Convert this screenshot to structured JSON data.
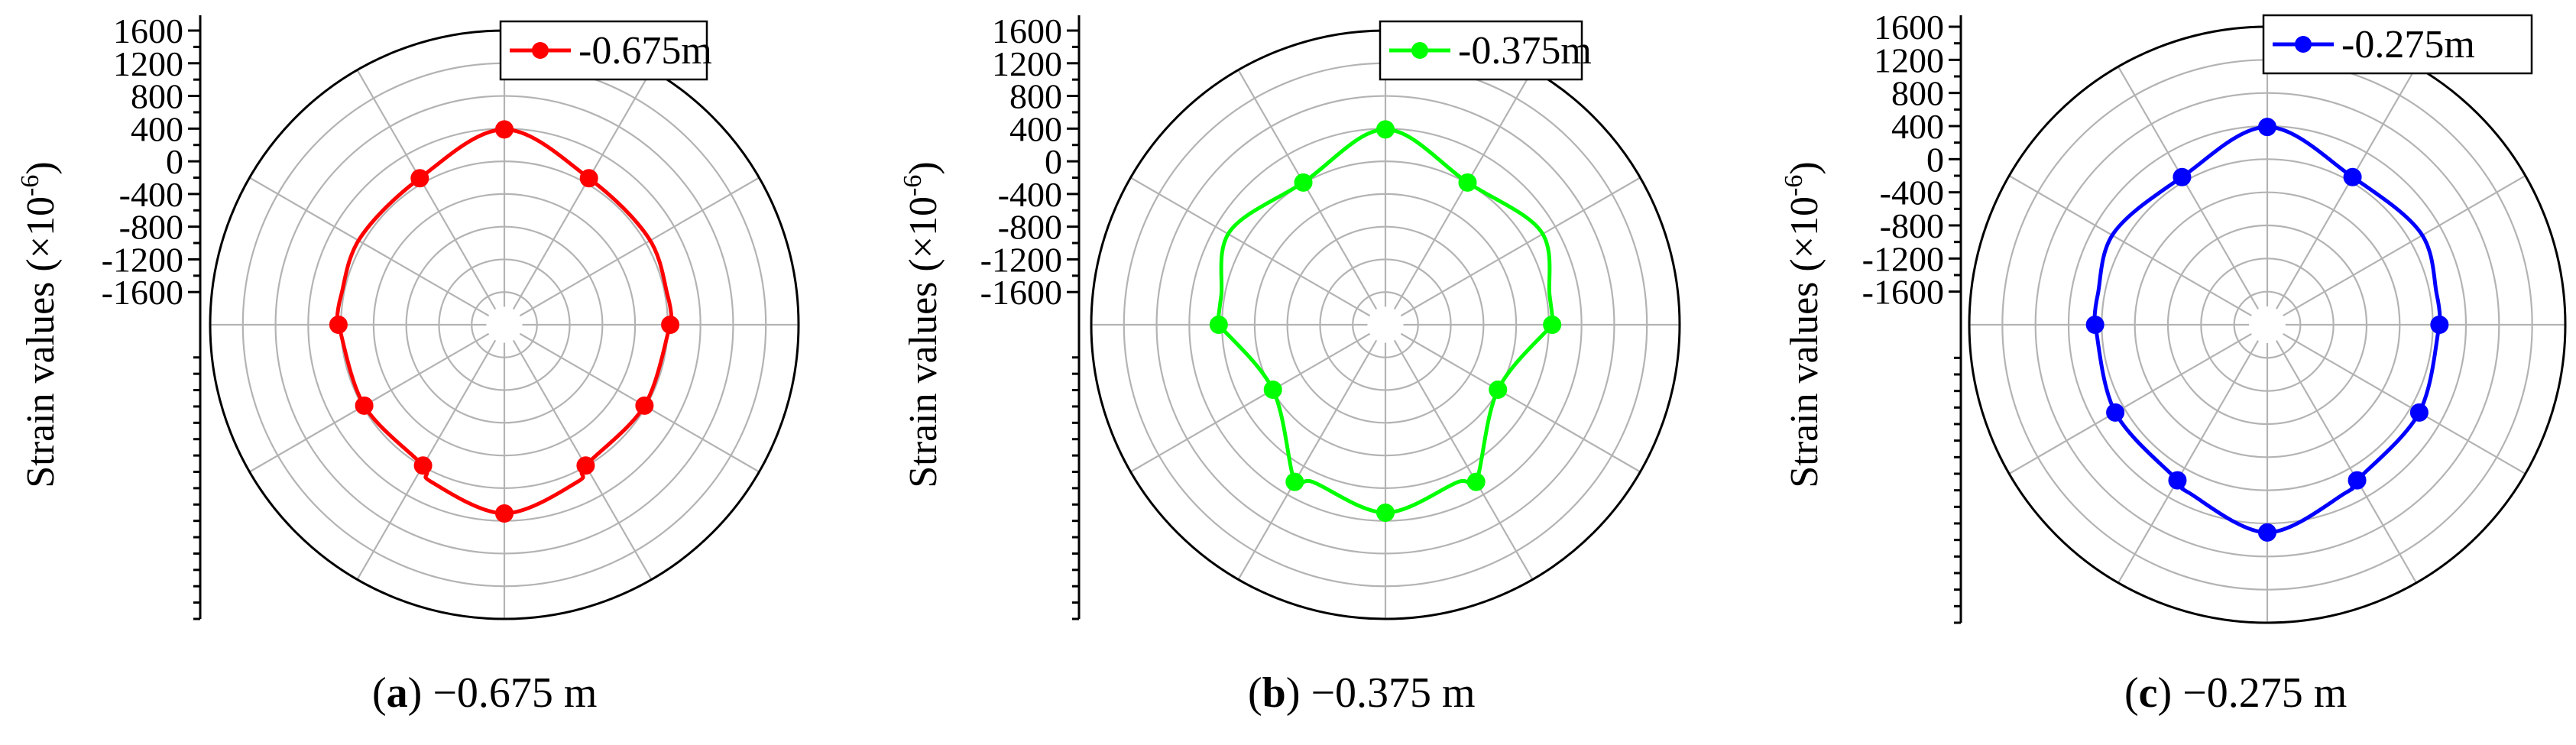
{
  "chart_data": [
    {
      "type": "polar-line",
      "panel_letter": "a",
      "caption_rest": " −0.675 m",
      "ylabel_main": "Strain values (×10",
      "ylabel_exp": "-6",
      "ylabel_close": ")",
      "legend_label": "-0.675m",
      "color": "#ff0000",
      "radial_ticks": [
        1600,
        1200,
        800,
        400,
        0,
        -400,
        -800,
        -1200,
        -1600
      ],
      "radial_range": [
        -2000,
        1600
      ],
      "theta_deg": [
        0,
        30,
        59,
        80,
        89,
        90,
        120,
        150,
        155,
        180,
        205,
        210,
        240,
        270,
        271,
        280,
        301,
        330
      ],
      "values": [
        390,
        70,
        60,
        30,
        50,
        30,
        -20,
        -10,
        120,
        310,
        120,
        -10,
        -20,
        30,
        50,
        30,
        60,
        70
      ],
      "grid": true
    },
    {
      "type": "polar-line",
      "panel_letter": "b",
      "caption_rest": " −0.375 m",
      "ylabel_main": "Strain values (×10",
      "ylabel_exp": "-6",
      "ylabel_close": ")",
      "legend_label": "-0.375m",
      "color": "#00ff00",
      "radial_ticks": [
        1600,
        1200,
        800,
        400,
        0,
        -400,
        -800,
        -1200,
        -1600
      ],
      "radial_range": [
        -2000,
        1600
      ],
      "theta_deg": [
        0,
        30,
        59,
        80,
        89,
        90,
        120,
        150,
        155,
        180,
        205,
        210,
        240,
        270,
        271,
        280,
        301,
        330
      ],
      "values": [
        390,
        10,
        220,
        40,
        50,
        40,
        -410,
        220,
        120,
        300,
        120,
        220,
        -410,
        40,
        50,
        40,
        220,
        10
      ],
      "grid": true
    },
    {
      "type": "polar-line",
      "panel_letter": "c",
      "caption_rest": " −0.275 m",
      "ylabel_main": "Strain values (×10",
      "ylabel_exp": "-6",
      "ylabel_close": ")",
      "legend_label": "-0.275m",
      "color": "#0000ff",
      "radial_ticks": [
        1600,
        1200,
        800,
        400,
        0,
        -400,
        -800,
        -1200,
        -1600
      ],
      "radial_range": [
        -2000,
        1600
      ],
      "theta_deg": [
        0,
        30,
        59,
        80,
        89,
        90,
        120,
        150,
        155,
        180,
        205,
        210,
        240,
        270,
        271,
        280,
        301,
        330
      ],
      "values": [
        390,
        60,
        160,
        80,
        90,
        80,
        120,
        170,
        240,
        510,
        240,
        170,
        120,
        80,
        90,
        80,
        160,
        60
      ],
      "grid": true
    }
  ]
}
